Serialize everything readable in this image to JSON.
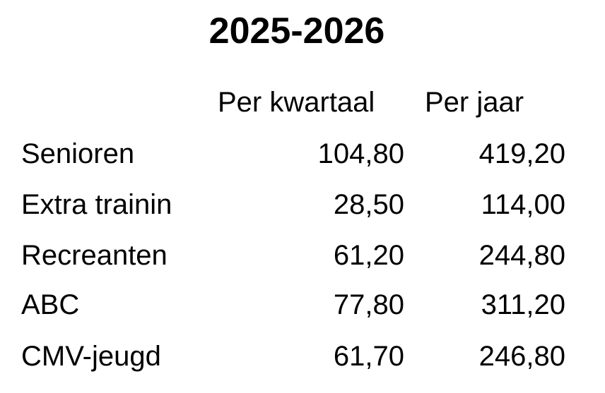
{
  "title": "2025-2026",
  "headers": [
    "Per kwartaal",
    "Per jaar"
  ],
  "rows": [
    {
      "name": "Senioren",
      "kwartaal": "104,80",
      "jaar": "419,20"
    },
    {
      "name": "Extra trainin",
      "kwartaal": "28,50",
      "jaar": "114,00"
    },
    {
      "name": "Recreanten",
      "kwartaal": "61,20",
      "jaar": "244,80"
    },
    {
      "name": "ABC",
      "kwartaal": "77,80",
      "jaar": "311,20"
    },
    {
      "name": "CMV-jeugd",
      "kwartaal": "61,70",
      "jaar": "246,80"
    }
  ]
}
